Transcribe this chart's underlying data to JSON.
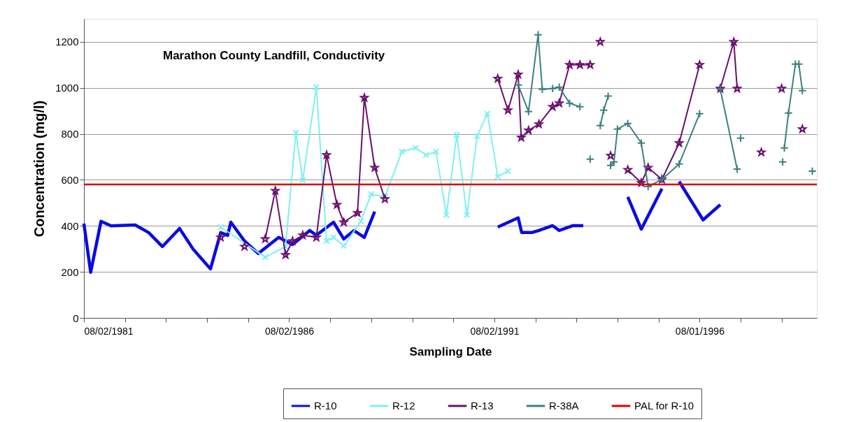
{
  "chart_data": {
    "type": "line",
    "title": "Marathon County Landfill, Conductivity",
    "xlabel": "Sampling Date",
    "ylabel": "Concentration (mg/l)",
    "xlim": [
      "1981-08-02",
      "1999-06-10"
    ],
    "ylim": [
      0,
      1300
    ],
    "yticks": [
      0,
      200,
      400,
      600,
      800,
      1000,
      1200
    ],
    "xticks": [
      {
        "value": "1981-08-02",
        "label": "08/02/1981"
      },
      {
        "value": "1982-08-02",
        "label": null
      },
      {
        "value": "1983-08-02",
        "label": null
      },
      {
        "value": "1984-08-02",
        "label": null
      },
      {
        "value": "1985-08-02",
        "label": null
      },
      {
        "value": "1986-08-02",
        "label": "08/02/1986"
      },
      {
        "value": "1987-08-02",
        "label": null
      },
      {
        "value": "1988-08-02",
        "label": null
      },
      {
        "value": "1989-08-02",
        "label": null
      },
      {
        "value": "1990-08-02",
        "label": null
      },
      {
        "value": "1991-08-02",
        "label": "08/02/1991"
      },
      {
        "value": "1992-08-01",
        "label": null
      },
      {
        "value": "1993-08-01",
        "label": null
      },
      {
        "value": "1994-08-01",
        "label": null
      },
      {
        "value": "1995-08-01",
        "label": null
      },
      {
        "value": "1996-08-01",
        "label": "08/01/1996"
      },
      {
        "value": "1997-08-01",
        "label": null
      },
      {
        "value": "1998-08-01",
        "label": null
      }
    ],
    "grid": "y",
    "legend": "bottom right",
    "series": [
      {
        "name": "R-10",
        "color": "#0a0ae6",
        "marker": "none",
        "x": [
          "1981-08-02",
          "1981-10-01",
          "1982-01-01",
          "1982-04-01",
          "1982-11-01",
          "1983-03-01",
          "1983-07-01",
          "1983-12-01",
          "1984-04-01",
          "1984-06-01",
          "1984-09-01",
          "1984-12-01",
          "1985-02-01",
          "1985-03-01",
          "1985-07-01",
          "1985-11-01",
          "1986-05-01",
          "1986-09-01",
          "1987-02-01",
          "1987-04-01",
          "1987-09-01",
          "1987-12-01",
          "1988-03-01",
          "1988-06-01",
          "1988-09-01",
          "1990-03-01",
          "1991-09-01",
          "1992-03-01",
          "1992-04-01",
          "1992-07-01",
          "1992-09-01",
          "1993-01-01",
          "1993-03-01",
          "1993-07-01",
          "1993-10-01",
          "1994-05-01",
          "1994-11-01",
          "1995-03-01",
          "1995-09-01",
          "1995-11-01",
          "1996-02-01",
          "1996-09-01",
          "1997-02-01"
        ],
        "values": [
          410,
          198,
          420,
          400,
          404,
          371,
          310,
          389,
          298,
          264,
          213,
          371,
          359,
          416,
          334,
          280,
          350,
          319,
          380,
          359,
          416,
          343,
          380,
          350,
          462,
          null,
          395,
          435,
          371,
          371,
          380,
          401,
          380,
          401,
          401,
          null,
          526,
          386,
          562,
          null,
          593,
          426,
          492
        ]
      },
      {
        "name": "R-12",
        "color": "#7ff0f0",
        "marker": "cross",
        "x": [
          "1984-12-01",
          "1986-01-01",
          "1986-07-01",
          "1986-10-01",
          "1986-12-01",
          "1987-04-01",
          "1987-07-01",
          "1987-09-01",
          "1987-12-01",
          "1988-05-01",
          "1988-08-01",
          "1988-12-01",
          "1989-05-01",
          "1989-09-01",
          "1989-12-01",
          "1990-03-01",
          "1990-06-01",
          "1990-09-01",
          "1990-12-01",
          "1991-03-01",
          "1991-06-01",
          "1991-09-01",
          "1991-12-01"
        ],
        "values": [
          395,
          264,
          310,
          805,
          599,
          1003,
          334,
          350,
          313,
          420,
          538,
          526,
          723,
          739,
          708,
          723,
          447,
          796,
          447,
          790,
          888,
          614,
          638
        ]
      },
      {
        "name": "R-13",
        "color": "#6a0f6e",
        "marker": "star",
        "x": [
          "1984-12-01",
          "1985-03-15",
          "1985-07-01",
          "1985-10-01",
          "1986-01-01",
          "1986-04-01",
          "1986-07-01",
          "1986-09-01",
          "1986-12-01",
          "1987-04-01",
          "1987-07-01",
          "1987-10-01",
          "1987-12-01",
          "1988-04-01",
          "1988-06-01",
          "1988-09-01",
          "1988-12-01",
          "1990-01-01",
          "1991-09-01",
          "1991-12-01",
          "1992-03-01",
          "1992-03-28",
          "1992-06-01",
          "1992-09-01",
          "1993-01-01",
          "1993-03-01",
          "1993-06-01",
          "1993-09-01",
          "1993-12-01",
          "1994-01-15",
          "1994-03-01",
          "1994-04-15",
          "1994-06-01",
          "1994-09-01",
          "1994-11-01",
          "1995-03-01",
          "1995-05-01",
          "1995-09-01",
          "1996-02-01",
          "1996-08-01",
          "1996-11-01",
          "1997-02-01",
          "1997-06-01",
          "1997-07-01",
          "1997-10-01",
          "1998-02-01",
          "1998-05-01",
          "1998-08-01",
          "1998-11-01",
          "1999-02-01"
        ],
        "values": [
          350,
          null,
          310,
          null,
          343,
          553,
          274,
          334,
          359,
          350,
          708,
          492,
          416,
          456,
          957,
          653,
          517,
          null,
          1040,
          903,
          1058,
          784,
          815,
          842,
          918,
          933,
          1100,
          1100,
          1100,
          null,
          1200,
          null,
          705,
          null,
          644,
          587,
          653,
          602,
          760,
          1100,
          null,
          997,
          1200,
          997,
          null,
          720,
          null,
          997,
          null,
          821
        ]
      },
      {
        "name": "R-38A",
        "color": "#3d8080",
        "marker": "cross",
        "x": [
          "1992-03-01",
          "1992-06-01",
          "1992-08-25",
          "1992-10-01",
          "1993-01-01",
          "1993-03-01",
          "1993-06-01",
          "1993-09-01",
          "1993-11-01",
          "1993-12-01",
          "1994-01-15",
          "1994-03-01",
          "1994-04-01",
          "1994-05-10",
          "1994-05-20",
          "1994-06-01",
          "1994-07-01",
          "1994-08-01",
          "1994-11-01",
          "1995-03-01",
          "1995-05-01",
          "1995-09-01",
          "1996-02-01",
          "1996-08-01",
          "1996-11-01",
          "1997-02-01",
          "1997-07-01",
          "1997-07-15",
          "1997-08-01",
          "1998-01-01",
          "1998-08-10",
          "1998-08-18",
          "1998-08-25",
          "1998-10-01",
          "1998-12-01",
          "1999-01-01",
          "1999-02-01",
          "1999-03-15",
          "1999-05-01"
        ],
        "values": [
          1012,
          897,
          1231,
          994,
          997,
          1003,
          933,
          918,
          null,
          690,
          null,
          836,
          903,
          964,
          null,
          663,
          678,
          821,
          845,
          760,
          571,
          602,
          669,
          888,
          null,
          994,
          647,
          null,
          781,
          null,
          678,
          null,
          739,
          891,
          1103,
          1103,
          988,
          null,
          638
        ]
      }
    ],
    "ref_lines": [
      {
        "axis": "y",
        "value": 580,
        "label": "PAL for R-10",
        "color": "#e00000"
      }
    ]
  }
}
